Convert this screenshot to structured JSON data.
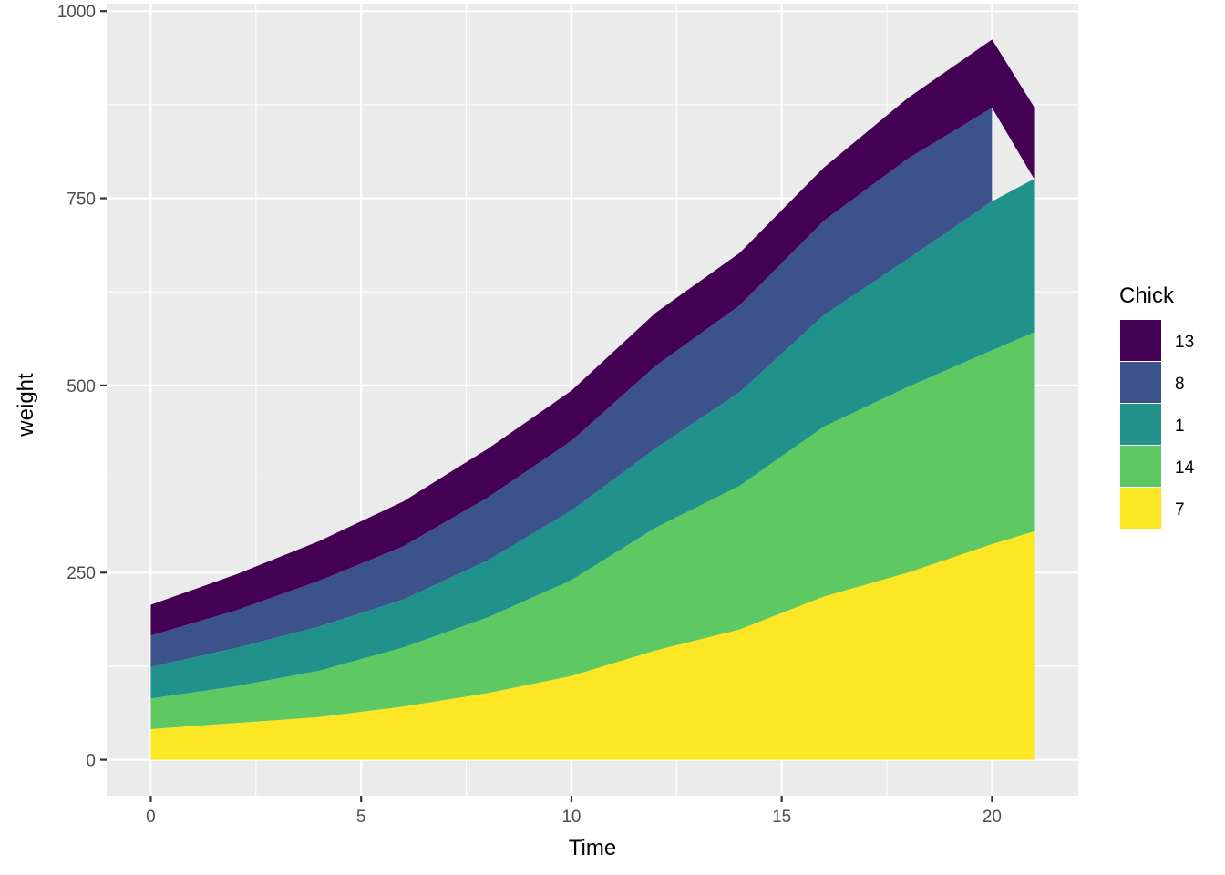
{
  "chart_data": {
    "type": "area",
    "stacked": true,
    "xlabel": "Time",
    "ylabel": "weight",
    "xlim": [
      -1.05,
      22.05
    ],
    "ylim": [
      -48,
      1010
    ],
    "x_ticks": [
      0,
      5,
      10,
      15,
      20
    ],
    "x_tick_labels": [
      "0",
      "5",
      "10",
      "15",
      "20"
    ],
    "y_ticks": [
      0,
      250,
      500,
      750,
      1000
    ],
    "y_tick_labels": [
      "0",
      "250",
      "500",
      "750",
      "1000"
    ],
    "x_minor": [
      2.5,
      7.5,
      12.5,
      17.5
    ],
    "y_minor": [
      125,
      375,
      625,
      875
    ],
    "grid": true,
    "panel_background": "#ebebeb",
    "grid_color": "#ffffff",
    "legend": {
      "title": "Chick",
      "position": "right",
      "order": [
        "13",
        "8",
        "1",
        "14",
        "7"
      ]
    },
    "x": [
      0,
      2,
      4,
      6,
      8,
      10,
      12,
      14,
      16,
      18,
      20,
      21
    ],
    "series": [
      {
        "name": "7",
        "color": "#fde725",
        "values": [
          41,
          49,
          57,
          71,
          89,
          112,
          146,
          174,
          218,
          250,
          288,
          305
        ]
      },
      {
        "name": "14",
        "color": "#5ec962",
        "values": [
          41,
          49,
          62,
          79,
          101,
          128,
          164,
          192,
          227,
          248,
          259,
          266
        ]
      },
      {
        "name": "1",
        "color": "#21918c",
        "values": [
          42,
          51,
          59,
          64,
          76,
          93,
          106,
          125,
          149,
          171,
          199,
          205
        ]
      },
      {
        "name": "8",
        "color": "#3b528b",
        "values": [
          42,
          50,
          61,
          71,
          84,
          93,
          110,
          116,
          126,
          134,
          125,
          null
        ]
      },
      {
        "name": "13",
        "color": "#440154",
        "values": [
          41,
          48,
          53,
          60,
          65,
          67,
          71,
          70,
          71,
          81,
          91,
          96
        ]
      }
    ]
  }
}
